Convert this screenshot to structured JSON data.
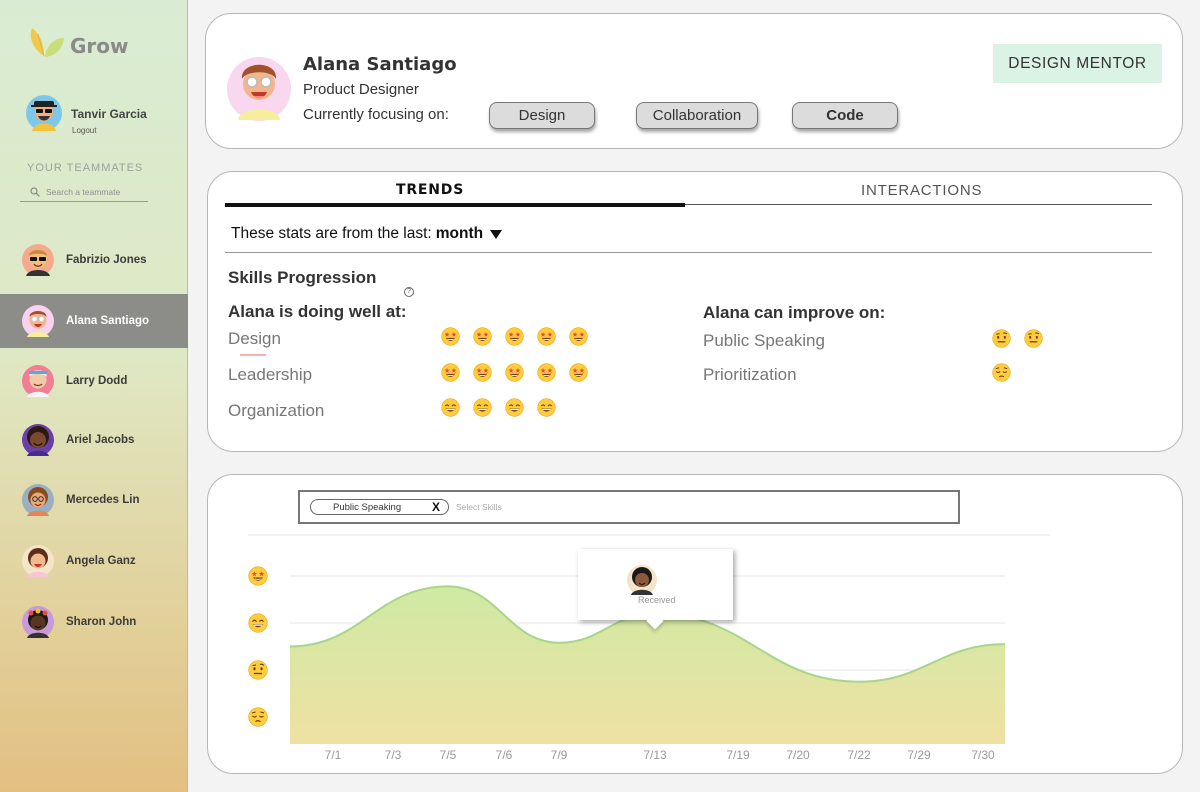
{
  "app": {
    "name": "Grow"
  },
  "user": {
    "name": "Tanvir Garcia",
    "logout_label": "Logout"
  },
  "sidebar": {
    "section_title": "YOUR TEAMMATES",
    "search_placeholder": "Search a teammate",
    "teammates": [
      {
        "name": "Fabrizio Jones",
        "active": false
      },
      {
        "name": "Alana Santiago",
        "active": true
      },
      {
        "name": "Larry Dodd",
        "active": false
      },
      {
        "name": "Ariel Jacobs",
        "active": false
      },
      {
        "name": "Mercedes Lin",
        "active": false
      },
      {
        "name": "Angela Ganz",
        "active": false
      },
      {
        "name": "Sharon John",
        "active": false
      }
    ]
  },
  "profile": {
    "name": "Alana Santiago",
    "role": "Product Designer",
    "focus_label": "Currently focusing on:",
    "focus_chips": [
      "Design",
      "Collaboration",
      "Code"
    ],
    "badge": "DESIGN MENTOR"
  },
  "tabs": {
    "trends": "TRENDS",
    "interactions": "INTERACTIONS"
  },
  "stats": {
    "prefix": "These stats are from the last:",
    "period": "month"
  },
  "skills": {
    "title": "Skills Progression",
    "good_title": "Alana is doing well at:",
    "improve_title": "Alana can improve on:",
    "good": [
      {
        "name": "Design",
        "level": 5,
        "emoji": "star-struck-emoji"
      },
      {
        "name": "Leadership",
        "level": 5,
        "emoji": "star-struck-emoji"
      },
      {
        "name": "Organization",
        "level": 4,
        "emoji": "grinning-emoji"
      }
    ],
    "improve": [
      {
        "name": "Public Speaking",
        "level": 2,
        "emoji": "raised-eyebrow-emoji"
      },
      {
        "name": "Prioritization",
        "level": 1,
        "emoji": "pensive-emoji"
      }
    ]
  },
  "chart_filter": {
    "selected": "Public Speaking",
    "remove_label": "X",
    "placeholder": "Select Skills"
  },
  "tooltip": {
    "text": "Received"
  },
  "chart_data": {
    "type": "area",
    "title": "",
    "xlabel": "",
    "ylabel": "",
    "categories": [
      "7/1",
      "7/3",
      "7/5",
      "7/6",
      "7/9",
      "7/13",
      "7/19",
      "7/20",
      "7/22",
      "7/29",
      "7/30"
    ],
    "y_levels": [
      "pensive-emoji",
      "raised-eyebrow-emoji",
      "grinning-emoji",
      "star-struck-emoji"
    ],
    "ylim": [
      1,
      4
    ],
    "series": [
      {
        "x": [
          "7/1",
          "7/5",
          "7/9",
          "7/13",
          "7/22",
          "7/30"
        ],
        "values": [
          2.5,
          3.78,
          2.58,
          3.2,
          1.75,
          2.55
        ]
      }
    ],
    "highlight": {
      "x": "7/13",
      "value": 3.2
    },
    "colors": {
      "line": "#a8d58b",
      "fill_top": "#cfeaa3",
      "fill_bottom": "#efe1a3",
      "point": "#5d7dd9"
    }
  }
}
